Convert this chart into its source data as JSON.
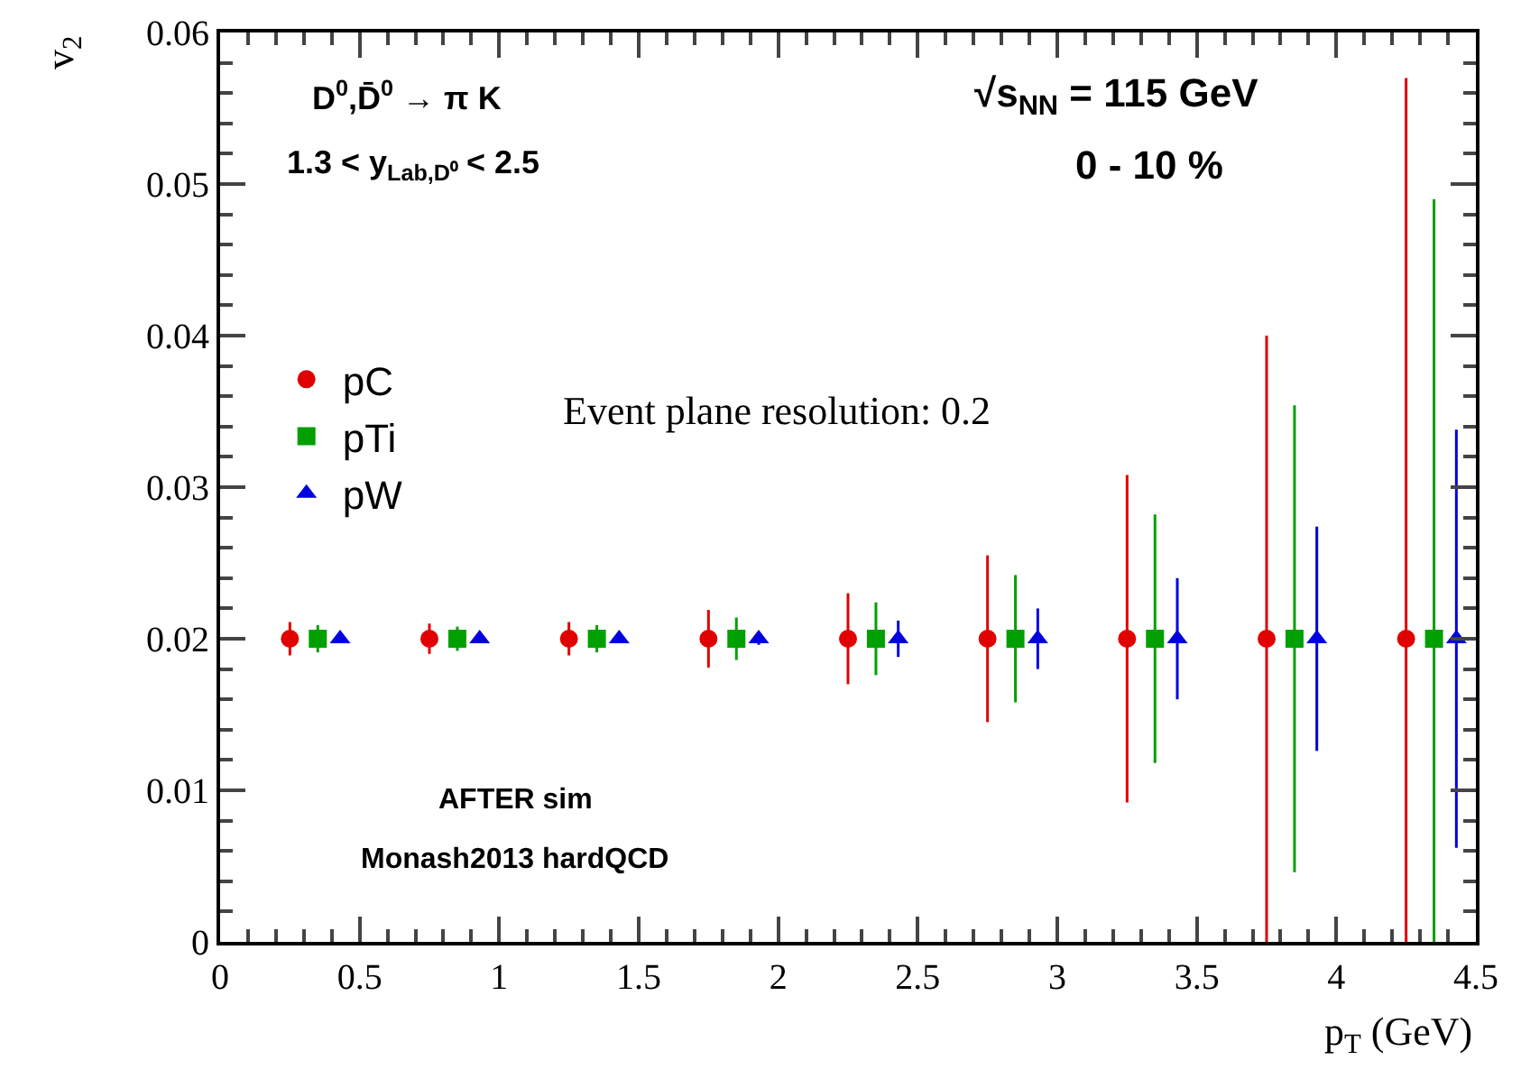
{
  "chart_data": {
    "type": "scatter",
    "xlabel": "p$_{T}$ (GeV)",
    "ylabel": "v$_{2}$",
    "xlim": [
      0,
      4.5
    ],
    "xticks": [
      0,
      0.5,
      1,
      1.5,
      2,
      2.5,
      3,
      3.5,
      4,
      4.5
    ],
    "ylim": [
      0,
      0.06
    ],
    "yticks": [
      0,
      0.01,
      0.02,
      0.03,
      0.04,
      0.05,
      0.06
    ],
    "legend": "top left",
    "series": [
      {
        "name": "pC",
        "color": "#e00000",
        "marker": "circle",
        "x": [
          0.25,
          0.75,
          1.25,
          1.75,
          2.25,
          2.75,
          3.25,
          3.75,
          4.25
        ],
        "values": [
          0.02,
          0.02,
          0.02,
          0.02,
          0.02,
          0.02,
          0.02,
          0.02,
          0.02
        ],
        "errors": [
          0.0011,
          0.001,
          0.0011,
          0.0019,
          0.003,
          0.0055,
          0.0108,
          [
            0,
            0.04
          ],
          [
            0,
            0.057
          ]
        ]
      },
      {
        "name": "pTi",
        "color": "#00a000",
        "marker": "square",
        "x": [
          0.35,
          0.85,
          1.35,
          1.85,
          2.35,
          2.85,
          3.35,
          3.85,
          4.35
        ],
        "values": [
          0.02,
          0.02,
          0.02,
          0.02,
          0.02,
          0.02,
          0.02,
          0.02,
          0.02
        ],
        "errors": [
          0.0009,
          0.0008,
          0.0009,
          0.0014,
          0.0024,
          0.0042,
          0.0082,
          0.0154,
          [
            0,
            0.049
          ]
        ]
      },
      {
        "name": "pW",
        "color": "#0000e0",
        "marker": "triangle",
        "x": [
          0.43,
          0.93,
          1.43,
          1.93,
          2.43,
          2.93,
          3.43,
          3.93,
          4.43
        ],
        "values": [
          0.02,
          0.02,
          0.02,
          0.02,
          0.02,
          0.02,
          0.02,
          0.02,
          0.02
        ],
        "errors": [
          0.0003,
          0.0003,
          0.0003,
          0.0004,
          0.0012,
          0.002,
          0.004,
          0.0074,
          0.0138
        ]
      }
    ],
    "annotations": [
      "D$^{0}$,D̄$^{0}$ → π K",
      "1.3 < y$_{Lab,D⁰}$ < 2.5",
      "√s$_{NN}$ = 115 GeV",
      "0 - 10 %",
      "Event plane resolution: 0.2",
      "AFTER sim",
      "Monash2013 hardQCD"
    ]
  }
}
